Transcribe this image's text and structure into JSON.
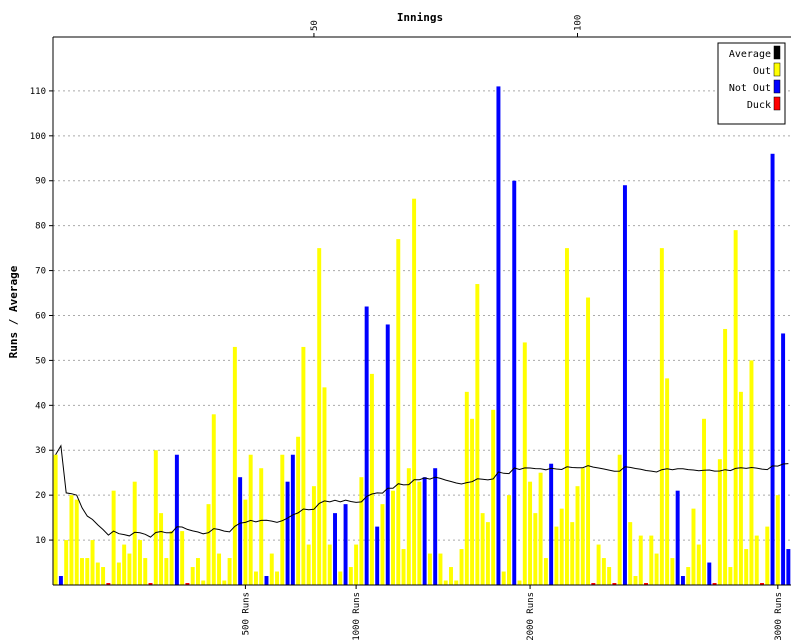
{
  "chart_data": {
    "type": "bar",
    "top_axis_label": "Innings",
    "ylabel": "Runs / Average",
    "ylim": [
      0,
      122
    ],
    "y_ticks": [
      10,
      20,
      30,
      40,
      50,
      60,
      70,
      80,
      90,
      100,
      110
    ],
    "innings_axis": {
      "max": 140,
      "ticks": [
        50,
        100
      ]
    },
    "runs_axis": {
      "ticks": [
        {
          "label": "500 Runs",
          "innings": 37
        },
        {
          "label": "1000 Runs",
          "innings": 58
        },
        {
          "label": "2000 Runs",
          "innings": 91
        },
        {
          "label": "3000 Runs",
          "innings": 138
        }
      ]
    },
    "grid": true,
    "legend_position": "top-right",
    "legend": [
      {
        "label": "Average",
        "color": "#000000"
      },
      {
        "label": "Out",
        "color": "#ffff00"
      },
      {
        "label": "Not Out",
        "color": "#0000ff"
      },
      {
        "label": "Duck",
        "color": "#ff0000"
      }
    ],
    "innings": [
      {
        "n": 1,
        "runs": 29,
        "status": "out"
      },
      {
        "n": 2,
        "runs": 2,
        "status": "notout"
      },
      {
        "n": 3,
        "runs": 10,
        "status": "out"
      },
      {
        "n": 4,
        "runs": 20,
        "status": "out"
      },
      {
        "n": 5,
        "runs": 19,
        "status": "out"
      },
      {
        "n": 6,
        "runs": 6,
        "status": "out"
      },
      {
        "n": 7,
        "runs": 6,
        "status": "out"
      },
      {
        "n": 8,
        "runs": 10,
        "status": "out"
      },
      {
        "n": 9,
        "runs": 5,
        "status": "out"
      },
      {
        "n": 10,
        "runs": 4,
        "status": "out"
      },
      {
        "n": 11,
        "runs": 0,
        "status": "duck"
      },
      {
        "n": 12,
        "runs": 21,
        "status": "out"
      },
      {
        "n": 13,
        "runs": 5,
        "status": "out"
      },
      {
        "n": 14,
        "runs": 9,
        "status": "out"
      },
      {
        "n": 15,
        "runs": 7,
        "status": "out"
      },
      {
        "n": 16,
        "runs": 23,
        "status": "out"
      },
      {
        "n": 17,
        "runs": 10,
        "status": "out"
      },
      {
        "n": 18,
        "runs": 6,
        "status": "out"
      },
      {
        "n": 19,
        "runs": 0,
        "status": "duck"
      },
      {
        "n": 20,
        "runs": 30,
        "status": "out"
      },
      {
        "n": 21,
        "runs": 16,
        "status": "out"
      },
      {
        "n": 22,
        "runs": 6,
        "status": "out"
      },
      {
        "n": 23,
        "runs": 12,
        "status": "out"
      },
      {
        "n": 24,
        "runs": 29,
        "status": "notout"
      },
      {
        "n": 25,
        "runs": 12,
        "status": "out"
      },
      {
        "n": 26,
        "runs": 0,
        "status": "duck"
      },
      {
        "n": 27,
        "runs": 4,
        "status": "out"
      },
      {
        "n": 28,
        "runs": 6,
        "status": "out"
      },
      {
        "n": 29,
        "runs": 1,
        "status": "out"
      },
      {
        "n": 30,
        "runs": 18,
        "status": "out"
      },
      {
        "n": 31,
        "runs": 38,
        "status": "out"
      },
      {
        "n": 32,
        "runs": 7,
        "status": "out"
      },
      {
        "n": 33,
        "runs": 1,
        "status": "out"
      },
      {
        "n": 34,
        "runs": 6,
        "status": "out"
      },
      {
        "n": 35,
        "runs": 53,
        "status": "out"
      },
      {
        "n": 36,
        "runs": 24,
        "status": "notout"
      },
      {
        "n": 37,
        "runs": 19,
        "status": "out"
      },
      {
        "n": 38,
        "runs": 29,
        "status": "out"
      },
      {
        "n": 39,
        "runs": 3,
        "status": "out"
      },
      {
        "n": 40,
        "runs": 26,
        "status": "out"
      },
      {
        "n": 41,
        "runs": 2,
        "status": "notout"
      },
      {
        "n": 42,
        "runs": 7,
        "status": "out"
      },
      {
        "n": 43,
        "runs": 3,
        "status": "out"
      },
      {
        "n": 44,
        "runs": 29,
        "status": "out"
      },
      {
        "n": 45,
        "runs": 23,
        "status": "notout"
      },
      {
        "n": 46,
        "runs": 29,
        "status": "notout"
      },
      {
        "n": 47,
        "runs": 33,
        "status": "out"
      },
      {
        "n": 48,
        "runs": 53,
        "status": "out"
      },
      {
        "n": 49,
        "runs": 9,
        "status": "out"
      },
      {
        "n": 50,
        "runs": 22,
        "status": "out"
      },
      {
        "n": 51,
        "runs": 75,
        "status": "out"
      },
      {
        "n": 52,
        "runs": 44,
        "status": "out"
      },
      {
        "n": 53,
        "runs": 9,
        "status": "out"
      },
      {
        "n": 54,
        "runs": 16,
        "status": "notout"
      },
      {
        "n": 55,
        "runs": 3,
        "status": "out"
      },
      {
        "n": 56,
        "runs": 18,
        "status": "notout"
      },
      {
        "n": 57,
        "runs": 4,
        "status": "out"
      },
      {
        "n": 58,
        "runs": 9,
        "status": "out"
      },
      {
        "n": 59,
        "runs": 24,
        "status": "out"
      },
      {
        "n": 60,
        "runs": 62,
        "status": "notout"
      },
      {
        "n": 61,
        "runs": 47,
        "status": "out"
      },
      {
        "n": 62,
        "runs": 13,
        "status": "notout"
      },
      {
        "n": 63,
        "runs": 18,
        "status": "out"
      },
      {
        "n": 64,
        "runs": 58,
        "status": "notout"
      },
      {
        "n": 65,
        "runs": 21,
        "status": "out"
      },
      {
        "n": 66,
        "runs": 77,
        "status": "out"
      },
      {
        "n": 67,
        "runs": 8,
        "status": "out"
      },
      {
        "n": 68,
        "runs": 26,
        "status": "out"
      },
      {
        "n": 69,
        "runs": 86,
        "status": "out"
      },
      {
        "n": 70,
        "runs": 23,
        "status": "out"
      },
      {
        "n": 71,
        "runs": 24,
        "status": "notout"
      },
      {
        "n": 72,
        "runs": 7,
        "status": "out"
      },
      {
        "n": 73,
        "runs": 26,
        "status": "notout"
      },
      {
        "n": 74,
        "runs": 7,
        "status": "out"
      },
      {
        "n": 75,
        "runs": 1,
        "status": "out"
      },
      {
        "n": 76,
        "runs": 4,
        "status": "out"
      },
      {
        "n": 77,
        "runs": 1,
        "status": "out"
      },
      {
        "n": 78,
        "runs": 8,
        "status": "out"
      },
      {
        "n": 79,
        "runs": 43,
        "status": "out"
      },
      {
        "n": 80,
        "runs": 37,
        "status": "out"
      },
      {
        "n": 81,
        "runs": 67,
        "status": "out"
      },
      {
        "n": 82,
        "runs": 16,
        "status": "out"
      },
      {
        "n": 83,
        "runs": 14,
        "status": "out"
      },
      {
        "n": 84,
        "runs": 39,
        "status": "out"
      },
      {
        "n": 85,
        "runs": 111,
        "status": "notout"
      },
      {
        "n": 86,
        "runs": 3,
        "status": "out"
      },
      {
        "n": 87,
        "runs": 20,
        "status": "out"
      },
      {
        "n": 88,
        "runs": 90,
        "status": "notout"
      },
      {
        "n": 89,
        "runs": 1,
        "status": "out"
      },
      {
        "n": 90,
        "runs": 54,
        "status": "out"
      },
      {
        "n": 91,
        "runs": 23,
        "status": "out"
      },
      {
        "n": 92,
        "runs": 16,
        "status": "out"
      },
      {
        "n": 93,
        "runs": 25,
        "status": "out"
      },
      {
        "n": 94,
        "runs": 6,
        "status": "out"
      },
      {
        "n": 95,
        "runs": 27,
        "status": "notout"
      },
      {
        "n": 96,
        "runs": 13,
        "status": "out"
      },
      {
        "n": 97,
        "runs": 17,
        "status": "out"
      },
      {
        "n": 98,
        "runs": 75,
        "status": "out"
      },
      {
        "n": 99,
        "runs": 14,
        "status": "out"
      },
      {
        "n": 100,
        "runs": 22,
        "status": "out"
      },
      {
        "n": 101,
        "runs": 26,
        "status": "out"
      },
      {
        "n": 102,
        "runs": 64,
        "status": "out"
      },
      {
        "n": 103,
        "runs": 0,
        "status": "duck"
      },
      {
        "n": 104,
        "runs": 9,
        "status": "out"
      },
      {
        "n": 105,
        "runs": 6,
        "status": "out"
      },
      {
        "n": 106,
        "runs": 4,
        "status": "out"
      },
      {
        "n": 107,
        "runs": 0,
        "status": "duck"
      },
      {
        "n": 108,
        "runs": 29,
        "status": "out"
      },
      {
        "n": 109,
        "runs": 89,
        "status": "notout"
      },
      {
        "n": 110,
        "runs": 14,
        "status": "out"
      },
      {
        "n": 111,
        "runs": 2,
        "status": "out"
      },
      {
        "n": 112,
        "runs": 11,
        "status": "out"
      },
      {
        "n": 113,
        "runs": 0,
        "status": "duck"
      },
      {
        "n": 114,
        "runs": 11,
        "status": "out"
      },
      {
        "n": 115,
        "runs": 7,
        "status": "out"
      },
      {
        "n": 116,
        "runs": 75,
        "status": "out"
      },
      {
        "n": 117,
        "runs": 46,
        "status": "out"
      },
      {
        "n": 118,
        "runs": 6,
        "status": "out"
      },
      {
        "n": 119,
        "runs": 21,
        "status": "notout"
      },
      {
        "n": 120,
        "runs": 2,
        "status": "notout"
      },
      {
        "n": 121,
        "runs": 4,
        "status": "out"
      },
      {
        "n": 122,
        "runs": 17,
        "status": "out"
      },
      {
        "n": 123,
        "runs": 9,
        "status": "out"
      },
      {
        "n": 124,
        "runs": 37,
        "status": "out"
      },
      {
        "n": 125,
        "runs": 5,
        "status": "notout"
      },
      {
        "n": 126,
        "runs": 0,
        "status": "duck"
      },
      {
        "n": 127,
        "runs": 28,
        "status": "out"
      },
      {
        "n": 128,
        "runs": 57,
        "status": "out"
      },
      {
        "n": 129,
        "runs": 4,
        "status": "out"
      },
      {
        "n": 130,
        "runs": 79,
        "status": "out"
      },
      {
        "n": 131,
        "runs": 43,
        "status": "out"
      },
      {
        "n": 132,
        "runs": 8,
        "status": "out"
      },
      {
        "n": 133,
        "runs": 50,
        "status": "out"
      },
      {
        "n": 134,
        "runs": 11,
        "status": "out"
      },
      {
        "n": 135,
        "runs": 0,
        "status": "duck"
      },
      {
        "n": 136,
        "runs": 13,
        "status": "out"
      },
      {
        "n": 137,
        "runs": 96,
        "status": "notout"
      },
      {
        "n": 138,
        "runs": 20,
        "status": "out"
      },
      {
        "n": 139,
        "runs": 56,
        "status": "notout"
      },
      {
        "n": 140,
        "runs": 8,
        "status": "notout"
      }
    ]
  }
}
